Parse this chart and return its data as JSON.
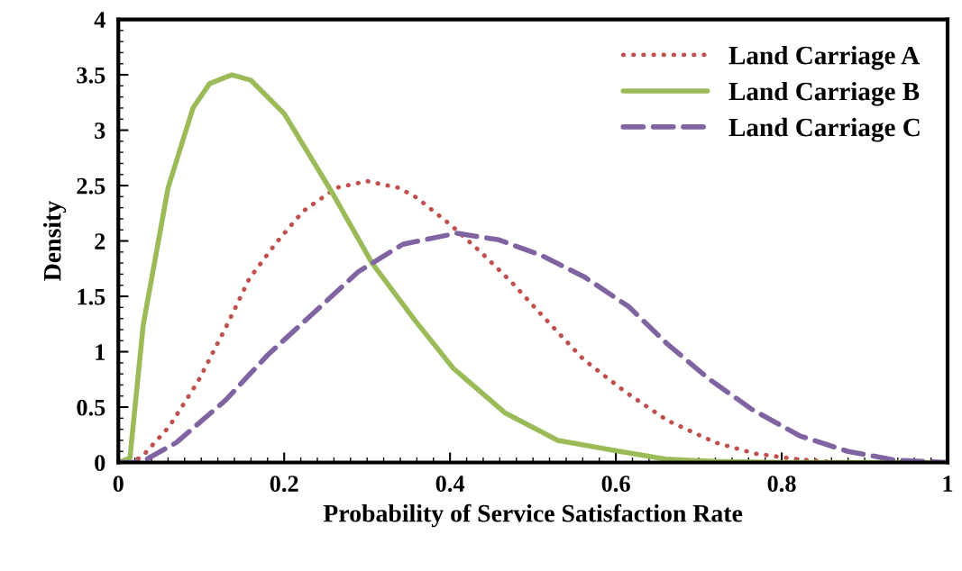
{
  "chart_data": {
    "type": "line",
    "xlabel": "Probability of Service Satisfaction Rate",
    "ylabel": "Density",
    "xlim": [
      0,
      1
    ],
    "ylim": [
      0,
      4
    ],
    "xticks": [
      0,
      0.2,
      0.4,
      0.6,
      0.8,
      1
    ],
    "yticks": [
      0,
      0.5,
      1,
      1.5,
      2,
      2.5,
      3,
      3.5,
      4
    ],
    "grid": false,
    "legend": "top right",
    "marker": "none",
    "series": [
      {
        "name": "Land Carriage A",
        "color": "#c0504d",
        "line_style": "dotted",
        "x": [
          0,
          0.027,
          0.061,
          0.096,
          0.131,
          0.158,
          0.19,
          0.223,
          0.263,
          0.3,
          0.338,
          0.36,
          0.4,
          0.437,
          0.474,
          0.517,
          0.561,
          0.611,
          0.662,
          0.72,
          0.768,
          0.818,
          0.87,
          1
        ],
        "values": [
          0,
          0.04,
          0.32,
          0.73,
          1.24,
          1.66,
          1.98,
          2.27,
          2.48,
          2.54,
          2.48,
          2.39,
          2.15,
          1.9,
          1.63,
          1.28,
          0.93,
          0.64,
          0.38,
          0.18,
          0.08,
          0.03,
          0,
          0
        ]
      },
      {
        "name": "Land Carriage B",
        "color": "#9bbb59",
        "line_style": "solid",
        "x": [
          0,
          0.014,
          0.03,
          0.06,
          0.09,
          0.11,
          0.137,
          0.16,
          0.2,
          0.256,
          0.306,
          0.357,
          0.404,
          0.466,
          0.53,
          0.605,
          0.66,
          0.72,
          0.8,
          1
        ],
        "values": [
          0,
          0.04,
          1.24,
          2.48,
          3.2,
          3.42,
          3.5,
          3.45,
          3.15,
          2.46,
          1.8,
          1.29,
          0.85,
          0.45,
          0.2,
          0.1,
          0.03,
          0.01,
          0,
          0
        ]
      },
      {
        "name": "Land Carriage C",
        "color": "#8064a2",
        "line_style": "dashed",
        "x": [
          0,
          0.027,
          0.07,
          0.129,
          0.18,
          0.234,
          0.289,
          0.343,
          0.408,
          0.459,
          0.51,
          0.561,
          0.615,
          0.662,
          0.713,
          0.764,
          0.822,
          0.88,
          0.938,
          1
        ],
        "values": [
          0,
          0,
          0.18,
          0.56,
          0.97,
          1.34,
          1.72,
          1.97,
          2.07,
          2.01,
          1.87,
          1.68,
          1.41,
          1.07,
          0.75,
          0.48,
          0.24,
          0.1,
          0.02,
          0
        ]
      }
    ]
  }
}
